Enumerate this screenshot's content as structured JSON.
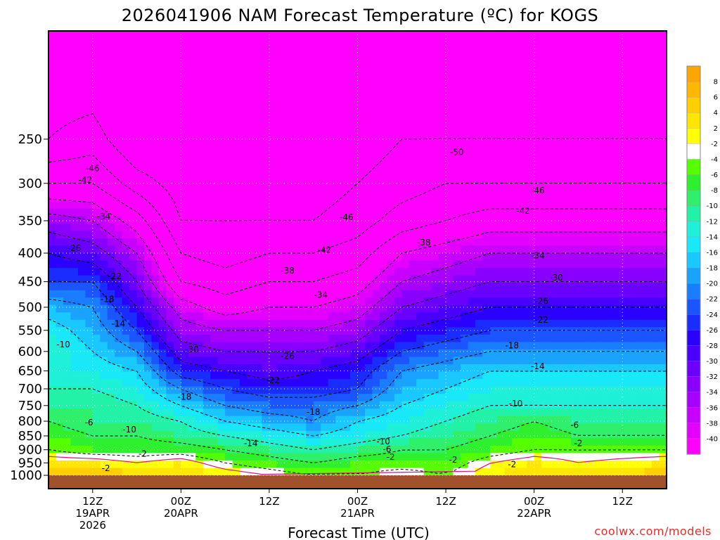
{
  "title": "2026041906 NAM Forecast Temperature (ºC) for KOGS",
  "credit": "coolwx.com/models",
  "chart_data": {
    "type": "heatmap",
    "title": "2026041906 NAM Forecast Temperature (ºC) for KOGS",
    "xlabel": "Forecast Time (UTC)",
    "ylabel": "",
    "y_scale": "log",
    "ylim": [
      1000,
      160
    ],
    "yticks": [
      250,
      300,
      350,
      400,
      450,
      500,
      550,
      600,
      650,
      700,
      750,
      800,
      850,
      900,
      950,
      1000
    ],
    "xlim": [
      0,
      84
    ],
    "x_unit": "forecast hours from 2026-04-19 06Z",
    "xticks": [
      {
        "hour": 6,
        "lines": [
          "12Z",
          "19APR",
          "2026"
        ]
      },
      {
        "hour": 18,
        "lines": [
          "00Z",
          "20APR"
        ]
      },
      {
        "hour": 30,
        "lines": [
          "12Z"
        ]
      },
      {
        "hour": 42,
        "lines": [
          "00Z",
          "21APR"
        ]
      },
      {
        "hour": 54,
        "lines": [
          "12Z"
        ]
      },
      {
        "hour": 66,
        "lines": [
          "00Z",
          "22APR"
        ]
      },
      {
        "hour": 78,
        "lines": [
          "12Z"
        ]
      }
    ],
    "grid": true,
    "colorbar": {
      "labels": [
        "8",
        "6",
        "4",
        "2",
        "-2",
        "-4",
        "-6",
        "-8",
        "-10",
        "-12",
        "-14",
        "-16",
        "-18",
        "-20",
        "-22",
        "-24",
        "-26",
        "-28",
        "-30",
        "-32",
        "-34",
        "-36",
        "-38",
        "-40"
      ],
      "colors": [
        "#ffa500",
        "#ffb800",
        "#ffcf00",
        "#ffe600",
        "#ffff00",
        "#ffffff",
        "#55ff00",
        "#2ef02e",
        "#2ef06a",
        "#22f2a8",
        "#1ff0d8",
        "#18e8f8",
        "#18c8ff",
        "#1aa2ff",
        "#1a7cff",
        "#1a55ff",
        "#1a2cff",
        "#2a00ff",
        "#4a00ff",
        "#6a00ff",
        "#8a00ff",
        "#a800ff",
        "#c800ff",
        "#e400ff",
        "#ff00ff"
      ]
    },
    "temperature_profiles": {
      "pressure_levels": [
        1000,
        950,
        900,
        850,
        800,
        750,
        700,
        650,
        600,
        550,
        500,
        450,
        400,
        350,
        300,
        250,
        200
      ],
      "series": [
        {
          "hour": 0,
          "values": [
            5,
            2,
            -2,
            -4,
            -6,
            -8,
            -10,
            -12,
            -10,
            -12,
            -16,
            -22,
            -26,
            -32,
            -42,
            -50,
            -52
          ]
        },
        {
          "hour": 6,
          "values": [
            6,
            2,
            -4,
            -6,
            -8,
            -8,
            -10,
            -12,
            -14,
            -16,
            -18,
            -22,
            -28,
            -34,
            -42,
            -48,
            -52
          ]
        },
        {
          "hour": 12,
          "values": [
            5,
            0,
            -4,
            -6,
            -8,
            -10,
            -12,
            -14,
            -18,
            -22,
            -26,
            -30,
            -34,
            -40,
            -48,
            -54,
            -56
          ]
        },
        {
          "hour": 18,
          "values": [
            4,
            2,
            -4,
            -8,
            -10,
            -14,
            -18,
            -24,
            -28,
            -32,
            -36,
            -42,
            -46,
            -50,
            -52,
            -54,
            -56
          ]
        },
        {
          "hour": 24,
          "values": [
            2,
            -2,
            -6,
            -10,
            -14,
            -18,
            -22,
            -26,
            -30,
            -34,
            -40,
            -44,
            -48,
            -50,
            -52,
            -54,
            -56
          ]
        },
        {
          "hour": 30,
          "values": [
            0,
            -4,
            -8,
            -12,
            -16,
            -20,
            -24,
            -28,
            -30,
            -34,
            -38,
            -42,
            -46,
            -50,
            -52,
            -54,
            -56
          ]
        },
        {
          "hour": 36,
          "values": [
            -2,
            -6,
            -10,
            -14,
            -18,
            -20,
            -24,
            -26,
            -30,
            -34,
            -38,
            -42,
            -46,
            -50,
            -52,
            -54,
            -56
          ]
        },
        {
          "hour": 42,
          "values": [
            -2,
            -4,
            -8,
            -12,
            -14,
            -18,
            -22,
            -24,
            -28,
            -32,
            -36,
            -40,
            -44,
            -48,
            -50,
            -52,
            -54
          ]
        },
        {
          "hour": 48,
          "values": [
            0,
            -4,
            -6,
            -10,
            -12,
            -14,
            -16,
            -18,
            -22,
            -26,
            -30,
            -34,
            -38,
            -44,
            -48,
            -50,
            -52
          ]
        },
        {
          "hour": 54,
          "values": [
            -2,
            -4,
            -6,
            -8,
            -10,
            -12,
            -14,
            -16,
            -20,
            -24,
            -28,
            -32,
            -36,
            -42,
            -46,
            -50,
            -52
          ]
        },
        {
          "hour": 60,
          "values": [
            2,
            0,
            -4,
            -6,
            -8,
            -10,
            -12,
            -14,
            -18,
            -22,
            -26,
            -30,
            -34,
            -40,
            -46,
            -50,
            -52
          ]
        },
        {
          "hour": 66,
          "values": [
            4,
            2,
            -2,
            -4,
            -6,
            -10,
            -12,
            -14,
            -18,
            -22,
            -26,
            -30,
            -34,
            -40,
            -46,
            -50,
            -52
          ]
        },
        {
          "hour": 72,
          "values": [
            3,
            0,
            -2,
            -6,
            -8,
            -10,
            -12,
            -14,
            -18,
            -22,
            -26,
            -30,
            -34,
            -40,
            -46,
            -50,
            -52
          ]
        },
        {
          "hour": 78,
          "values": [
            4,
            1,
            -2,
            -6,
            -8,
            -10,
            -12,
            -14,
            -18,
            -22,
            -26,
            -30,
            -34,
            -40,
            -46,
            -50,
            -52
          ]
        },
        {
          "hour": 84,
          "values": [
            6,
            2,
            -2,
            -6,
            -8,
            -10,
            -12,
            -14,
            -18,
            -22,
            -26,
            -30,
            -34,
            -40,
            -46,
            -50,
            -52
          ]
        }
      ]
    },
    "contour_labels": [
      {
        "text": "-46",
        "hour": 6,
        "p": 282
      },
      {
        "text": "-42",
        "hour": 5,
        "p": 296
      },
      {
        "text": "-34",
        "hour": 7.5,
        "p": 344
      },
      {
        "text": "-26",
        "hour": 3.5,
        "p": 392
      },
      {
        "text": "-22",
        "hour": 9,
        "p": 440
      },
      {
        "text": "-18",
        "hour": 8,
        "p": 484
      },
      {
        "text": "-14",
        "hour": 9.5,
        "p": 535
      },
      {
        "text": "-10",
        "hour": 2,
        "p": 583
      },
      {
        "text": "-6",
        "hour": 5.5,
        "p": 805
      },
      {
        "text": "-10",
        "hour": 11,
        "p": 828
      },
      {
        "text": "-2",
        "hour": 12.8,
        "p": 915
      },
      {
        "text": "-2",
        "hour": 7.8,
        "p": 971
      },
      {
        "text": "-30",
        "hour": 19.5,
        "p": 595
      },
      {
        "text": "-18",
        "hour": 18.5,
        "p": 724
      },
      {
        "text": "-50",
        "hour": 55.5,
        "p": 264
      },
      {
        "text": "-46",
        "hour": 40.5,
        "p": 345
      },
      {
        "text": "-42",
        "hour": 37.5,
        "p": 395
      },
      {
        "text": "-38",
        "hour": 32.5,
        "p": 430
      },
      {
        "text": "-34",
        "hour": 37,
        "p": 475
      },
      {
        "text": "-26",
        "hour": 32.5,
        "p": 612
      },
      {
        "text": "-22",
        "hour": 30.5,
        "p": 676
      },
      {
        "text": "-18",
        "hour": 36,
        "p": 770
      },
      {
        "text": "-14",
        "hour": 27.5,
        "p": 876
      },
      {
        "text": "-10",
        "hour": 45.5,
        "p": 870
      },
      {
        "text": "-6",
        "hour": 46,
        "p": 898
      },
      {
        "text": "-2",
        "hour": 55,
        "p": 938
      },
      {
        "text": "-2",
        "hour": 46.5,
        "p": 928
      },
      {
        "text": "-46",
        "hour": 66.5,
        "p": 309
      },
      {
        "text": "-42",
        "hour": 64.5,
        "p": 336
      },
      {
        "text": "-38",
        "hour": 51,
        "p": 383
      },
      {
        "text": "-34",
        "hour": 66.5,
        "p": 404
      },
      {
        "text": "-30",
        "hour": 69,
        "p": 443
      },
      {
        "text": "-26",
        "hour": 67,
        "p": 488
      },
      {
        "text": "-22",
        "hour": 67,
        "p": 527
      },
      {
        "text": "-18",
        "hour": 63,
        "p": 586
      },
      {
        "text": "-14",
        "hour": 66.5,
        "p": 638
      },
      {
        "text": "-10",
        "hour": 63.5,
        "p": 744
      },
      {
        "text": "-6",
        "hour": 71.5,
        "p": 813
      },
      {
        "text": "-2",
        "hour": 72,
        "p": 876
      },
      {
        "text": "-2",
        "hour": 63,
        "p": 956
      }
    ]
  }
}
